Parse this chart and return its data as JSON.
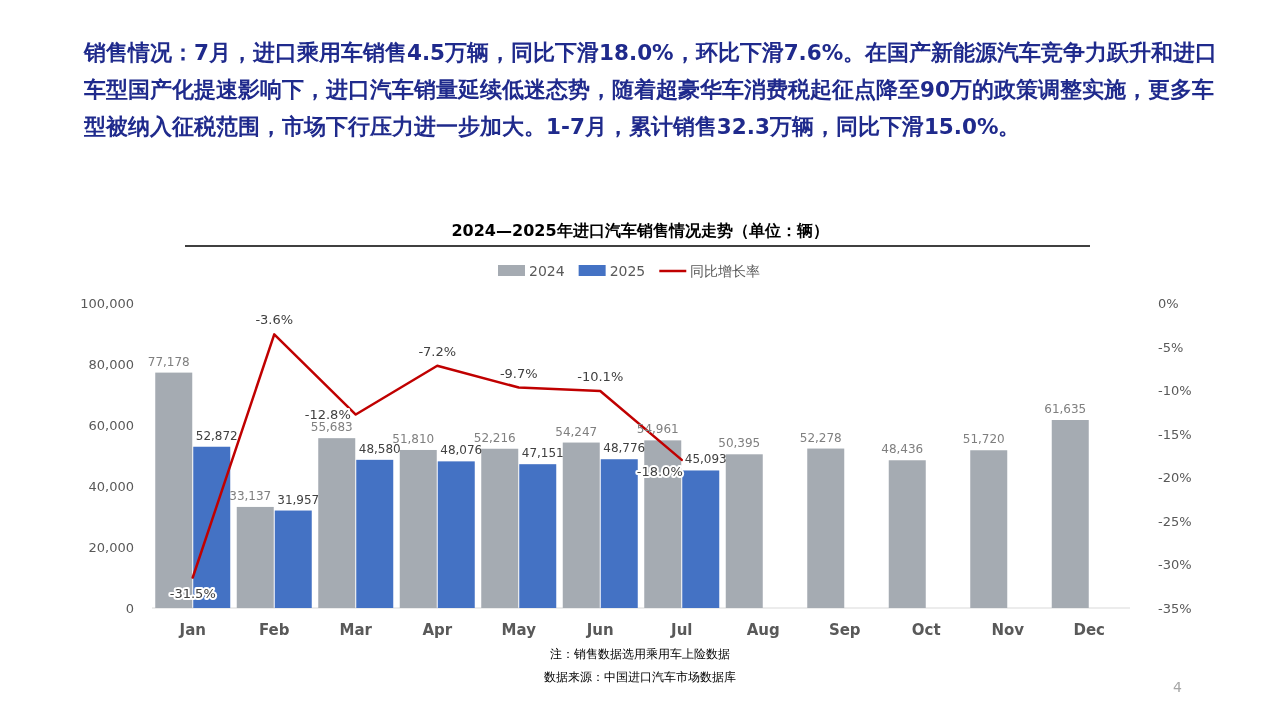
{
  "chart_data": {
    "type": "bar",
    "title": "2024—2025年进口汽车销售情况走势（单位：辆）",
    "categories": [
      "Jan",
      "Feb",
      "Mar",
      "Apr",
      "May",
      "Jun",
      "Jul",
      "Aug",
      "Sep",
      "Oct",
      "Nov",
      "Dec"
    ],
    "series": [
      {
        "name": "2024",
        "color": "#a5abb2",
        "values": [
          77178,
          33137,
          55683,
          51810,
          52216,
          54247,
          54961,
          50395,
          52278,
          48436,
          51720,
          61635
        ],
        "value_labels": [
          "77,178",
          "33,137",
          "55,683",
          "51,810",
          "52,216",
          "54,247",
          "54,961",
          "50,395",
          "52,278",
          "48,436",
          "51,720",
          "61,635"
        ]
      },
      {
        "name": "2025",
        "color": "#4472c4",
        "values": [
          52872,
          31957,
          48580,
          48076,
          47151,
          48776,
          45093,
          null,
          null,
          null,
          null,
          null
        ],
        "value_labels": [
          "52,872",
          "31,957",
          "48,580",
          "48,076",
          "47,151",
          "48,776",
          "45,093",
          null,
          null,
          null,
          null,
          null
        ]
      },
      {
        "name": "同比增长率",
        "type": "line",
        "axis": "y2",
        "color": "#c00000",
        "values": [
          -31.5,
          -3.6,
          -12.8,
          -7.2,
          -9.7,
          -10.1,
          -18.0,
          null,
          null,
          null,
          null,
          null
        ],
        "value_labels": [
          "-31.5%",
          "-3.6%",
          "-12.8%",
          "-7.2%",
          "-9.7%",
          "-10.1%",
          "-18.0%",
          null,
          null,
          null,
          null,
          null
        ]
      }
    ],
    "ylim": [
      0,
      100000
    ],
    "yticks": [
      0,
      {
        "value": 20000,
        "label": "20,000"
      },
      {
        "value": 40000,
        "label": "40,000"
      },
      {
        "value": 60000,
        "label": "60,000"
      },
      {
        "value": 80000,
        "label": "80,000"
      },
      {
        "value": 100000,
        "label": "100,000"
      }
    ],
    "y2lim": [
      -35,
      0
    ],
    "y2ticks": [
      {
        "value": -35,
        "label": "-35%"
      },
      {
        "value": -30,
        "label": "-30%"
      },
      {
        "value": -25,
        "label": "-25%"
      },
      {
        "value": -20,
        "label": "-20%"
      },
      {
        "value": -15,
        "label": "-15%"
      },
      {
        "value": -10,
        "label": "-10%"
      },
      {
        "value": -5,
        "label": "-5%"
      },
      {
        "value": 0,
        "label": "0%"
      }
    ],
    "legend": "top",
    "marker": "none",
    "annotations": [
      "销售情况：7月，进口乘用车销售4.5万辆，同比下滑18.0%，环比下滑7.6%。在国产新能源汽车竞争力跃升和进口车型国产化提速影响下，进口汽车销量延续低迷态势，随着超豪华车消费税起征点降至90万的政策调整实施，更多车型被纳入征税范围，市场下行压力进一步加大。1-7月，累计销售32.3万辆，同比下滑15.0%。",
      "注：销售数据选用乘用车上险数据",
      "数据来源：中国进口汽车市场数据库",
      "4"
    ]
  }
}
